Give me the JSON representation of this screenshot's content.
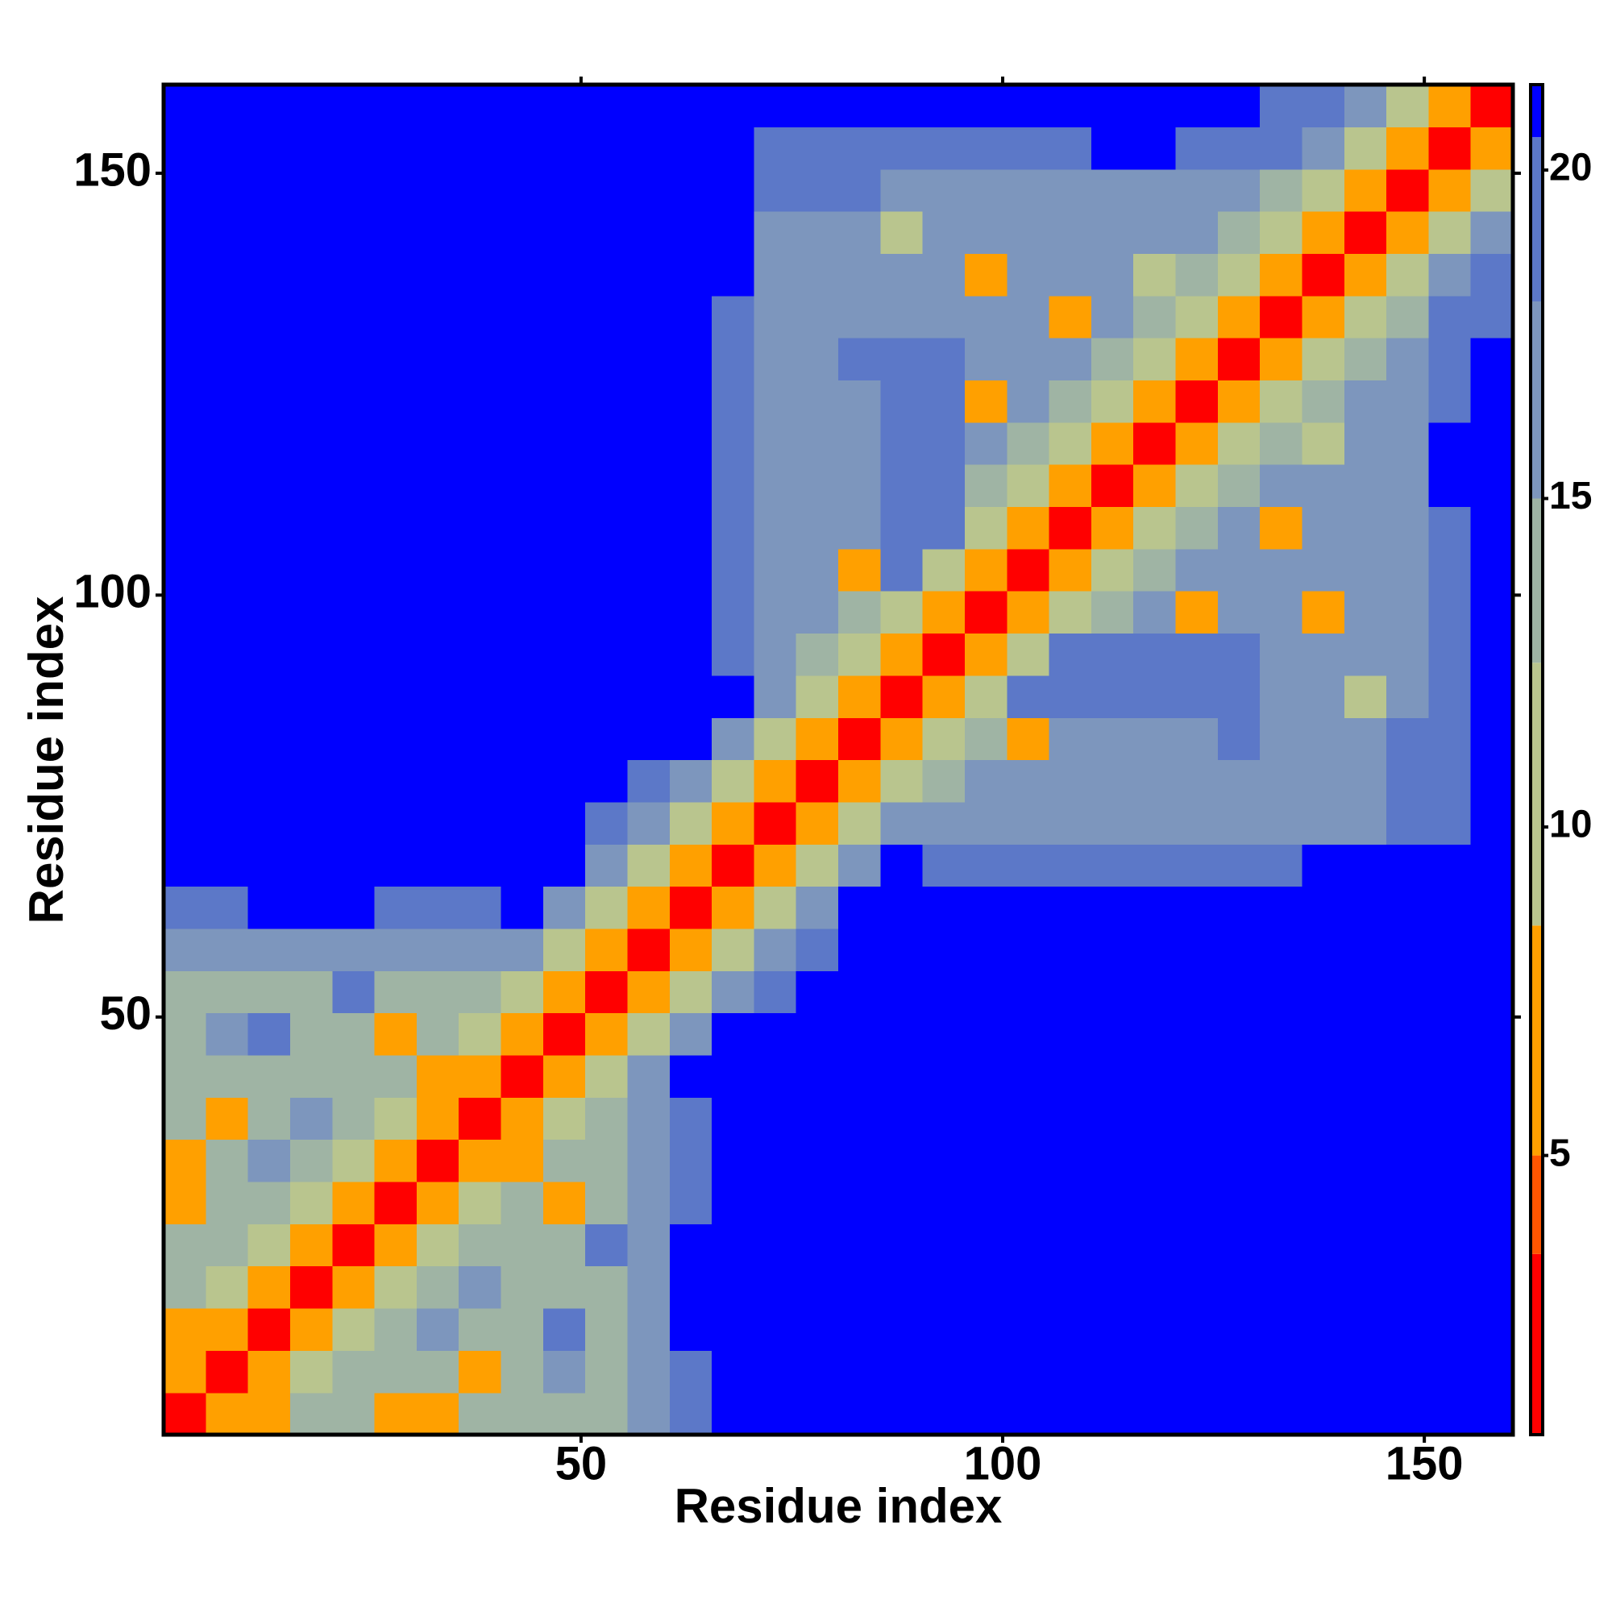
{
  "chart_data": {
    "type": "heatmap",
    "xlabel": "Residue index",
    "ylabel": "Residue index",
    "xlim": [
      0.5,
      160.5
    ],
    "ylim": [
      0.5,
      160.5
    ],
    "xticks": [
      50,
      100,
      150
    ],
    "yticks": [
      50,
      100,
      150
    ],
    "x": [
      3,
      8,
      13,
      18,
      23,
      28,
      33,
      38,
      43,
      48,
      53,
      58,
      63,
      68,
      73,
      78,
      83,
      88,
      93,
      98,
      103,
      108,
      113,
      118,
      123,
      128,
      133,
      138,
      143,
      148,
      153,
      158
    ],
    "y": [
      3,
      8,
      13,
      18,
      23,
      28,
      33,
      38,
      43,
      48,
      53,
      58,
      63,
      68,
      73,
      78,
      83,
      88,
      93,
      98,
      103,
      108,
      113,
      118,
      123,
      128,
      133,
      138,
      143,
      148,
      153,
      158
    ],
    "colorscale": [
      {
        "value": 0.75,
        "color": "#ff0000"
      },
      {
        "value": 3.5,
        "color": "#ff5500"
      },
      {
        "value": 5,
        "color": "#ffa000"
      },
      {
        "value": 8.5,
        "color": "#b9c58e"
      },
      {
        "value": 12.5,
        "color": "#9fb4a4"
      },
      {
        "value": 15,
        "color": "#7d96bd"
      },
      {
        "value": 18,
        "color": "#5c78c8"
      },
      {
        "value": 20.5,
        "color": "#0000ff"
      }
    ],
    "clim": [
      0.75,
      21.3
    ],
    "cticks": [
      5,
      10,
      15,
      20
    ],
    "values": [
      [
        3,
        8,
        7,
        14,
        14,
        7,
        7,
        14,
        14,
        14,
        14,
        15,
        19,
        21,
        21,
        21,
        21,
        21,
        21,
        21,
        21,
        21,
        21,
        21,
        21,
        21,
        21,
        21,
        21,
        21,
        21,
        21
      ],
      [
        8,
        3,
        8,
        12,
        14,
        14,
        14,
        7,
        14,
        16,
        14,
        16,
        20,
        21,
        21,
        21,
        21,
        21,
        21,
        21,
        21,
        21,
        21,
        21,
        21,
        21,
        21,
        21,
        21,
        21,
        21,
        21
      ],
      [
        7,
        8,
        3,
        8,
        12,
        14,
        17,
        14,
        14,
        18,
        14,
        17,
        21,
        21,
        21,
        21,
        21,
        21,
        21,
        21,
        21,
        21,
        21,
        21,
        21,
        21,
        21,
        21,
        21,
        21,
        21,
        21
      ],
      [
        14,
        12,
        8,
        3,
        8,
        12,
        14,
        17,
        14,
        14,
        14,
        16,
        21,
        21,
        21,
        21,
        21,
        21,
        21,
        21,
        21,
        21,
        21,
        21,
        21,
        21,
        21,
        21,
        21,
        21,
        21,
        21
      ],
      [
        14,
        14,
        12,
        8,
        3,
        8,
        12,
        14,
        14,
        14,
        18,
        15,
        21,
        21,
        21,
        21,
        21,
        21,
        21,
        21,
        21,
        21,
        21,
        21,
        21,
        21,
        21,
        21,
        21,
        21,
        21,
        21
      ],
      [
        7,
        14,
        14,
        12,
        8,
        3,
        8,
        12,
        14,
        7,
        14,
        16,
        20,
        21,
        21,
        21,
        21,
        21,
        21,
        21,
        21,
        21,
        21,
        21,
        21,
        21,
        21,
        21,
        21,
        21,
        21,
        21
      ],
      [
        7,
        14,
        17,
        14,
        12,
        8,
        3,
        8,
        7,
        14,
        14,
        16,
        18,
        21,
        21,
        21,
        21,
        21,
        21,
        21,
        21,
        21,
        21,
        21,
        21,
        21,
        21,
        21,
        21,
        21,
        21,
        21
      ],
      [
        14,
        7,
        14,
        17,
        14,
        12,
        8,
        3,
        8,
        12,
        14,
        16,
        19,
        21,
        21,
        21,
        21,
        21,
        21,
        21,
        21,
        21,
        21,
        21,
        21,
        21,
        21,
        21,
        21,
        21,
        21,
        21
      ],
      [
        14,
        14,
        14,
        14,
        14,
        14,
        7,
        8,
        3,
        8,
        12,
        17,
        21,
        21,
        21,
        21,
        21,
        21,
        21,
        21,
        21,
        21,
        21,
        21,
        21,
        21,
        21,
        21,
        21,
        21,
        21,
        21
      ],
      [
        14,
        16,
        18,
        14,
        14,
        7,
        14,
        12,
        8,
        3,
        8,
        12,
        17,
        21,
        21,
        21,
        21,
        21,
        21,
        21,
        21,
        21,
        21,
        21,
        21,
        21,
        21,
        21,
        21,
        21,
        21,
        21
      ],
      [
        14,
        14,
        14,
        14,
        18,
        14,
        14,
        14,
        12,
        8,
        3,
        8,
        12,
        17,
        19,
        21,
        21,
        21,
        21,
        21,
        21,
        21,
        21,
        21,
        21,
        21,
        21,
        21,
        21,
        21,
        21,
        21
      ],
      [
        15,
        16,
        17,
        16,
        15,
        16,
        16,
        16,
        17,
        12,
        8,
        3,
        8,
        12,
        16,
        19,
        21,
        21,
        21,
        21,
        21,
        21,
        21,
        21,
        21,
        21,
        21,
        21,
        21,
        21,
        21,
        21
      ],
      [
        19,
        20,
        21,
        21,
        21,
        20,
        18,
        19,
        21,
        17,
        12,
        8,
        3,
        8,
        12,
        17,
        21,
        21,
        21,
        21,
        21,
        21,
        21,
        21,
        21,
        21,
        21,
        21,
        21,
        21,
        21,
        21
      ],
      [
        21,
        21,
        21,
        21,
        21,
        21,
        21,
        21,
        21,
        21,
        17,
        12,
        8,
        3,
        8,
        12,
        17,
        21,
        19,
        19,
        19,
        19,
        19,
        19,
        19,
        19,
        19,
        21,
        21,
        21,
        21,
        21
      ],
      [
        21,
        21,
        21,
        21,
        21,
        21,
        21,
        21,
        21,
        21,
        19,
        16,
        12,
        8,
        3,
        8,
        12,
        17,
        17,
        17,
        17,
        17,
        17,
        17,
        17,
        17,
        17,
        17,
        17,
        19,
        19,
        21
      ],
      [
        21,
        21,
        21,
        21,
        21,
        21,
        21,
        21,
        21,
        21,
        21,
        19,
        17,
        12,
        8,
        3,
        8,
        12,
        14,
        16,
        16,
        16,
        16,
        16,
        16,
        16,
        16,
        16,
        16,
        19,
        19,
        21
      ],
      [
        21,
        21,
        21,
        21,
        21,
        21,
        21,
        21,
        21,
        21,
        21,
        21,
        21,
        17,
        12,
        8,
        3,
        8,
        12,
        14,
        7,
        16,
        16,
        16,
        16,
        18,
        16,
        16,
        16,
        19,
        19,
        21
      ],
      [
        21,
        21,
        21,
        21,
        21,
        21,
        21,
        21,
        21,
        21,
        21,
        21,
        21,
        21,
        17,
        12,
        8,
        3,
        8,
        12,
        20,
        20,
        20,
        20,
        20,
        20,
        16,
        16,
        12,
        16,
        19,
        21
      ],
      [
        21,
        21,
        21,
        21,
        21,
        21,
        21,
        21,
        21,
        21,
        21,
        21,
        21,
        19,
        17,
        14,
        12,
        8,
        3,
        8,
        12,
        20,
        20,
        20,
        20,
        20,
        16,
        16,
        16,
        16,
        19,
        21
      ],
      [
        21,
        21,
        21,
        21,
        21,
        21,
        21,
        21,
        21,
        21,
        21,
        21,
        21,
        19,
        17,
        16,
        14,
        12,
        8,
        3,
        8,
        12,
        14,
        16,
        7,
        16,
        16,
        7,
        16,
        16,
        19,
        21
      ],
      [
        21,
        21,
        21,
        21,
        21,
        21,
        21,
        21,
        21,
        21,
        21,
        21,
        21,
        19,
        17,
        16,
        7,
        20,
        12,
        8,
        3,
        8,
        12,
        14,
        16,
        16,
        16,
        16,
        16,
        16,
        19,
        21
      ],
      [
        21,
        21,
        21,
        21,
        21,
        21,
        21,
        21,
        21,
        21,
        21,
        21,
        21,
        19,
        17,
        16,
        16,
        20,
        20,
        12,
        8,
        3,
        8,
        12,
        14,
        16,
        7,
        16,
        16,
        16,
        20,
        21
      ],
      [
        21,
        21,
        21,
        21,
        21,
        21,
        21,
        21,
        21,
        21,
        21,
        21,
        21,
        19,
        17,
        16,
        16,
        20,
        20,
        14,
        12,
        8,
        3,
        8,
        12,
        14,
        16,
        16,
        16,
        16,
        21,
        21
      ],
      [
        21,
        21,
        21,
        21,
        21,
        21,
        21,
        21,
        21,
        21,
        21,
        21,
        21,
        19,
        17,
        16,
        16,
        20,
        20,
        16,
        14,
        12,
        8,
        3,
        8,
        12,
        14,
        12,
        16,
        16,
        21,
        21
      ],
      [
        21,
        21,
        21,
        21,
        21,
        21,
        21,
        21,
        21,
        21,
        21,
        21,
        21,
        19,
        17,
        16,
        16,
        20,
        20,
        7,
        16,
        14,
        12,
        8,
        3,
        8,
        12,
        14,
        16,
        16,
        18,
        21
      ],
      [
        21,
        21,
        21,
        21,
        21,
        21,
        21,
        21,
        21,
        21,
        21,
        21,
        21,
        19,
        17,
        16,
        18,
        20,
        20,
        16,
        16,
        16,
        14,
        12,
        8,
        3,
        8,
        12,
        14,
        16,
        18,
        21
      ],
      [
        21,
        21,
        21,
        21,
        21,
        21,
        21,
        21,
        21,
        21,
        21,
        21,
        21,
        19,
        17,
        16,
        16,
        16,
        16,
        16,
        16,
        7,
        16,
        14,
        12,
        8,
        3,
        8,
        12,
        14,
        18,
        19
      ],
      [
        21,
        21,
        21,
        21,
        21,
        21,
        21,
        21,
        21,
        21,
        21,
        21,
        21,
        21,
        17,
        16,
        16,
        16,
        16,
        7,
        16,
        16,
        16,
        12,
        14,
        12,
        8,
        3,
        8,
        12,
        16,
        18
      ],
      [
        21,
        21,
        21,
        21,
        21,
        21,
        21,
        21,
        21,
        21,
        21,
        21,
        21,
        21,
        17,
        16,
        16,
        12,
        16,
        16,
        16,
        16,
        16,
        16,
        16,
        14,
        12,
        8,
        3,
        8,
        12,
        16
      ],
      [
        21,
        21,
        21,
        21,
        21,
        21,
        21,
        21,
        21,
        21,
        21,
        21,
        21,
        21,
        19,
        19,
        19,
        16,
        16,
        16,
        16,
        16,
        16,
        16,
        16,
        16,
        14,
        12,
        8,
        3,
        8,
        12
      ],
      [
        21,
        21,
        21,
        21,
        21,
        21,
        21,
        21,
        21,
        21,
        21,
        21,
        21,
        21,
        19,
        19,
        19,
        19,
        19,
        19,
        19,
        20,
        21,
        21,
        18,
        18,
        18,
        16,
        12,
        8,
        3,
        8
      ],
      [
        21,
        21,
        21,
        21,
        21,
        21,
        21,
        21,
        21,
        21,
        21,
        21,
        21,
        21,
        21,
        21,
        21,
        21,
        21,
        21,
        21,
        21,
        21,
        21,
        21,
        21,
        19,
        18,
        16,
        12,
        8,
        3
      ]
    ]
  }
}
